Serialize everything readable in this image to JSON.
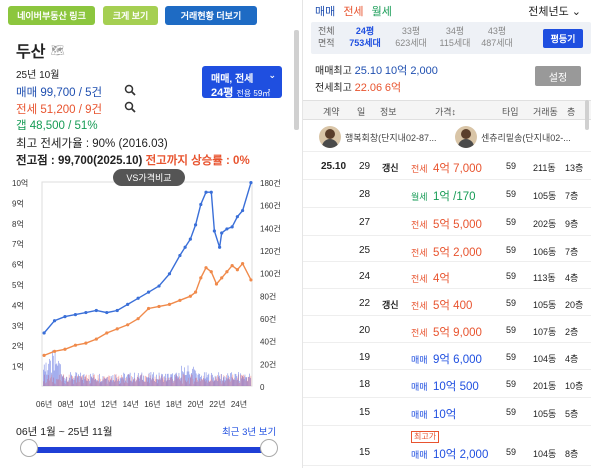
{
  "buttons": {
    "naver": "네이버부동산 링크",
    "big": "크게 보기",
    "status": "거래현황 더보기"
  },
  "complex": {
    "name": "두산"
  },
  "summary": {
    "date": "25년 10월",
    "sale": "매매 99,700 / 5건",
    "jeonse": "전세 51,200 / 9건",
    "gap": "갭 48,500 / 51%",
    "max_rate": "최고 전세가율 : 90% (2016.03)",
    "high_prefix": "전고점 : 99,700(2025.10)",
    "high_rise": "전고까지 상승률 : 0%"
  },
  "dropdown": {
    "line1": "매매, 전세",
    "size": "24평",
    "sub": "전용 59㎡"
  },
  "vs_button": "VS가격비교",
  "chart_data": {
    "type": "line",
    "x_ticks": [
      "06년",
      "08년",
      "10년",
      "12년",
      "14년",
      "16년",
      "18년",
      "20년",
      "22년",
      "24년"
    ],
    "y_left_ticks": [
      "10억",
      "9억",
      "8억",
      "7억",
      "6억",
      "5억",
      "4억",
      "3억",
      "2억",
      "1억"
    ],
    "y_right_ticks": [
      "180건",
      "160건",
      "140건",
      "120건",
      "100건",
      "80건",
      "60건",
      "40건",
      "20건",
      "0"
    ],
    "colors": {
      "sale": "#3a6fd8",
      "jeonse": "#f08a4b",
      "vol_sale": "#5b6ee0",
      "vol_jeon": "#f28a8a"
    },
    "series": [
      {
        "key": "sale",
        "x": [
          2006,
          2007,
          2008,
          2009,
          2010,
          2011,
          2012,
          2013,
          2014,
          2015,
          2016,
          2017,
          2018,
          2019,
          2019.5,
          2020,
          2020.5,
          2021,
          2021.5,
          2022,
          2022.3,
          2022.8,
          2023,
          2023.5,
          2024,
          2024.5,
          2025,
          2025.8
        ],
        "y": [
          2.6,
          3.2,
          3.4,
          3.5,
          3.6,
          3.7,
          3.6,
          3.7,
          4.0,
          4.3,
          4.6,
          4.9,
          5.5,
          6.4,
          6.8,
          7.2,
          7.9,
          8.9,
          9.5,
          9.5,
          7.6,
          6.8,
          7.5,
          7.7,
          7.8,
          8.3,
          8.6,
          9.97
        ]
      },
      {
        "key": "jeonse",
        "x": [
          2006,
          2007,
          2008,
          2009,
          2010,
          2011,
          2012,
          2013,
          2014,
          2015,
          2016,
          2017,
          2018,
          2019,
          2020,
          2020.5,
          2021,
          2021.5,
          2022,
          2022.5,
          2023,
          2023.5,
          2024,
          2024.5,
          2025,
          2025.8
        ],
        "y": [
          1.5,
          1.7,
          1.8,
          2.0,
          2.1,
          2.3,
          2.6,
          2.8,
          3.0,
          3.3,
          3.8,
          3.9,
          4.0,
          4.2,
          4.4,
          4.6,
          5.3,
          5.8,
          5.6,
          5.0,
          5.3,
          5.6,
          5.9,
          5.7,
          6.0,
          5.2
        ]
      }
    ]
  },
  "range": {
    "label": "06년 1월 ~ 25년 11월",
    "recent": "최근 3년 보기"
  },
  "tabs": {
    "sale": "매매",
    "jeon": "전세",
    "wol": "월세"
  },
  "year_select": "전체년도",
  "sizes": {
    "head1": "전체",
    "head2": "면적",
    "items": [
      {
        "p": "24평",
        "c": "753세대"
      },
      {
        "p": "33평",
        "c": "623세대"
      },
      {
        "p": "34평",
        "c": "115세대"
      },
      {
        "p": "43평",
        "c": "487세대"
      }
    ],
    "button": "평등기"
  },
  "maxinfo": {
    "sale_label": "매매최고",
    "sale_date": "25.10",
    "sale_val": "10억 2,000",
    "jeon_label": "전세최고",
    "jeon_date": "22.06",
    "jeon_val": "6억"
  },
  "settings": "설정",
  "table": {
    "headers": {
      "contract": "계약",
      "day": "일",
      "info": "정보",
      "price": "가격↕",
      "type": "타입",
      "area": "거래동",
      "floor": "층"
    },
    "agents": [
      {
        "name": "행복회창(단지내02-87..."
      },
      {
        "name": "센츄리밑송(단지내02-..."
      }
    ],
    "rows": [
      {
        "ym": "25.10",
        "day": "29",
        "info": "갱신",
        "ptype": "전세",
        "price": "4억 7,000",
        "t": "59",
        "dong": "211동",
        "floor": "13층",
        "cls": "j"
      },
      {
        "ym": "",
        "day": "28",
        "info": "",
        "ptype": "월세",
        "price": "1억 /170",
        "t": "59",
        "dong": "105동",
        "floor": "7층",
        "cls": "w"
      },
      {
        "ym": "",
        "day": "27",
        "info": "",
        "ptype": "전세",
        "price": "5억 5,000",
        "t": "59",
        "dong": "202동",
        "floor": "9층",
        "cls": "j"
      },
      {
        "ym": "",
        "day": "25",
        "info": "",
        "ptype": "전세",
        "price": "5억 2,000",
        "t": "59",
        "dong": "106동",
        "floor": "7층",
        "cls": "j"
      },
      {
        "ym": "",
        "day": "24",
        "info": "",
        "ptype": "전세",
        "price": "4억",
        "t": "59",
        "dong": "113동",
        "floor": "4층",
        "cls": "j"
      },
      {
        "ym": "",
        "day": "22",
        "info": "갱신",
        "ptype": "전세",
        "price": "5억 400",
        "t": "59",
        "dong": "105동",
        "floor": "20층",
        "cls": "j"
      },
      {
        "ym": "",
        "day": "20",
        "info": "",
        "ptype": "전세",
        "price": "5억 9,000",
        "t": "59",
        "dong": "107동",
        "floor": "2층",
        "cls": "j"
      },
      {
        "ym": "",
        "day": "19",
        "info": "",
        "ptype": "매매",
        "price": "9억 6,000",
        "t": "59",
        "dong": "104동",
        "floor": "4층",
        "cls": "s"
      },
      {
        "ym": "",
        "day": "18",
        "info": "",
        "ptype": "매매",
        "price": "10억 500",
        "t": "59",
        "dong": "201동",
        "floor": "10층",
        "cls": "s"
      },
      {
        "ym": "",
        "day": "15",
        "info": "",
        "ptype": "매매",
        "price": "10억",
        "t": "59",
        "dong": "105동",
        "floor": "5층",
        "cls": "s"
      },
      {
        "ym": "",
        "day": "15",
        "info": "",
        "ptype": "매매",
        "price": "10억 2,000",
        "t": "59",
        "dong": "104동",
        "floor": "8층",
        "cls": "s",
        "badge": "최고가"
      }
    ]
  }
}
